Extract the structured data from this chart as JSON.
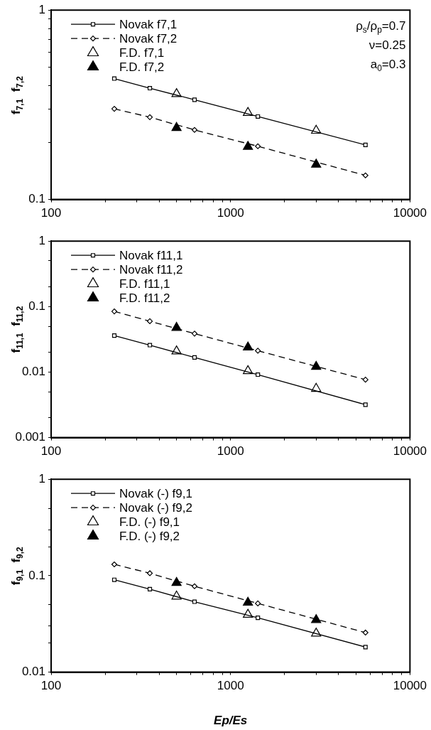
{
  "chart_data": [
    {
      "type": "line",
      "ylabel": "f$_{7,1}$  f$_{7,2}$",
      "log": "xy",
      "grid": false,
      "legend": "top left",
      "annotations": [
        "ρ$_{s}$/ρ$_{p}$=0.7",
        "ν=0.25",
        "a$_{0}$=0.3"
      ],
      "xlim": [
        100,
        10000
      ],
      "xticks": [
        100,
        {
          "value": 200,
          "label": null
        },
        {
          "value": 300,
          "label": null
        },
        {
          "value": 400,
          "label": null
        },
        {
          "value": 500,
          "label": null
        },
        {
          "value": 600,
          "label": null
        },
        {
          "value": 700,
          "label": null
        },
        {
          "value": 800,
          "label": null
        },
        {
          "value": 900,
          "label": null
        },
        1000,
        {
          "value": 2000,
          "label": null
        },
        {
          "value": 3000,
          "label": null
        },
        {
          "value": 4000,
          "label": null
        },
        {
          "value": 5000,
          "label": null
        },
        {
          "value": 6000,
          "label": null
        },
        {
          "value": 7000,
          "label": null
        },
        {
          "value": 8000,
          "label": null
        },
        {
          "value": 9000,
          "label": null
        },
        10000
      ],
      "ylim": [
        0.1,
        1
      ],
      "yticks": [
        0.1,
        {
          "value": 0.2,
          "label": null
        },
        {
          "value": 0.3,
          "label": null
        },
        {
          "value": 0.4,
          "label": null
        },
        {
          "value": 0.5,
          "label": null
        },
        {
          "value": 0.6,
          "label": null
        },
        {
          "value": 0.7,
          "label": null
        },
        {
          "value": 0.8,
          "label": null
        },
        {
          "value": 0.9,
          "label": null
        },
        1
      ],
      "series": [
        {
          "name": "Novak f7,1",
          "type": "line",
          "color": "#000000",
          "marker": "square",
          "line_style": "solid",
          "x": [
            225,
            355,
            630,
            1420,
            5650
          ],
          "values": [
            0.435,
            0.387,
            0.336,
            0.274,
            0.194
          ]
        },
        {
          "name": "Novak f7,2",
          "type": "line",
          "color": "#000000",
          "marker": "diamond",
          "line_style": "dashed",
          "x": [
            225,
            355,
            630,
            1420,
            5650
          ],
          "values": [
            0.301,
            0.272,
            0.233,
            0.191,
            0.134
          ]
        },
        {
          "name": "F.D. f7,1",
          "type": "scatter",
          "color": "#ffffff",
          "marker": "triangle",
          "x": [
            500,
            1250,
            3000
          ],
          "values": [
            0.361,
            0.287,
            0.231
          ]
        },
        {
          "name": "F.D. f7,2",
          "type": "scatter",
          "color": "#000000",
          "marker": "triangle",
          "x": [
            500,
            1250,
            3000
          ],
          "values": [
            0.239,
            0.19,
            0.153
          ]
        }
      ]
    },
    {
      "type": "line",
      "ylabel": "f$_{11,1}$  f$_{11,2}$",
      "log": "xy",
      "grid": false,
      "legend": "top left",
      "xlim": [
        100,
        10000
      ],
      "xticks": [
        100,
        {
          "value": 200,
          "label": null
        },
        {
          "value": 300,
          "label": null
        },
        {
          "value": 400,
          "label": null
        },
        {
          "value": 500,
          "label": null
        },
        {
          "value": 600,
          "label": null
        },
        {
          "value": 700,
          "label": null
        },
        {
          "value": 800,
          "label": null
        },
        {
          "value": 900,
          "label": null
        },
        1000,
        {
          "value": 2000,
          "label": null
        },
        {
          "value": 3000,
          "label": null
        },
        {
          "value": 4000,
          "label": null
        },
        {
          "value": 5000,
          "label": null
        },
        {
          "value": 6000,
          "label": null
        },
        {
          "value": 7000,
          "label": null
        },
        {
          "value": 8000,
          "label": null
        },
        {
          "value": 9000,
          "label": null
        },
        10000
      ],
      "ylim": [
        0.001,
        1
      ],
      "yticks": [
        0.001,
        {
          "value": 0.002,
          "label": null
        },
        {
          "value": 0.005,
          "label": null
        },
        0.01,
        {
          "value": 0.02,
          "label": null
        },
        {
          "value": 0.05,
          "label": null
        },
        0.1,
        {
          "value": 0.2,
          "label": null
        },
        {
          "value": 0.5,
          "label": null
        },
        1
      ],
      "series": [
        {
          "name": "Novak f11,1",
          "type": "line",
          "color": "#000000",
          "marker": "square",
          "line_style": "solid",
          "x": [
            225,
            355,
            630,
            1420,
            5650
          ],
          "values": [
            0.0361,
            0.0258,
            0.0167,
            0.00915,
            0.00318
          ]
        },
        {
          "name": "Novak f11,2",
          "type": "line",
          "color": "#000000",
          "marker": "diamond",
          "line_style": "dashed",
          "x": [
            225,
            355,
            630,
            1420,
            5650
          ],
          "values": [
            0.0845,
            0.0598,
            0.0387,
            0.0212,
            0.00766
          ]
        },
        {
          "name": "F.D. f11,1",
          "type": "scatter",
          "color": "#ffffff",
          "marker": "triangle",
          "x": [
            500,
            1250,
            3000
          ],
          "values": [
            0.0208,
            0.0104,
            0.00558
          ]
        },
        {
          "name": "F.D. f11,2",
          "type": "scatter",
          "color": "#000000",
          "marker": "triangle",
          "x": [
            500,
            1250,
            3000
          ],
          "values": [
            0.0476,
            0.0239,
            0.0121
          ]
        }
      ]
    },
    {
      "type": "line",
      "ylabel": "f$_{9,1}$  f$_{9,2}$",
      "xlabel": "Ep/Es",
      "log": "xy",
      "grid": false,
      "legend": "top left",
      "xlim": [
        100,
        10000
      ],
      "xticks": [
        100,
        {
          "value": 200,
          "label": null
        },
        {
          "value": 300,
          "label": null
        },
        {
          "value": 400,
          "label": null
        },
        {
          "value": 500,
          "label": null
        },
        {
          "value": 600,
          "label": null
        },
        {
          "value": 700,
          "label": null
        },
        {
          "value": 800,
          "label": null
        },
        {
          "value": 900,
          "label": null
        },
        1000,
        {
          "value": 2000,
          "label": null
        },
        {
          "value": 3000,
          "label": null
        },
        {
          "value": 4000,
          "label": null
        },
        {
          "value": 5000,
          "label": null
        },
        {
          "value": 6000,
          "label": null
        },
        {
          "value": 7000,
          "label": null
        },
        {
          "value": 8000,
          "label": null
        },
        {
          "value": 9000,
          "label": null
        },
        10000
      ],
      "ylim": [
        0.01,
        1
      ],
      "yticks": [
        0.01,
        {
          "value": 0.02,
          "label": null
        },
        {
          "value": 0.03,
          "label": null
        },
        {
          "value": 0.05,
          "label": null
        },
        0.1,
        {
          "value": 0.2,
          "label": null
        },
        {
          "value": 0.3,
          "label": null
        },
        {
          "value": 0.5,
          "label": null
        },
        1
      ],
      "series": [
        {
          "name": "Novak (-) f9,1",
          "type": "line",
          "color": "#000000",
          "marker": "square",
          "line_style": "solid",
          "x": [
            225,
            355,
            630,
            1420,
            5650
          ],
          "values": [
            0.0906,
            0.0724,
            0.0537,
            0.0366,
            0.0182
          ]
        },
        {
          "name": "Novak (-) f9,2",
          "type": "line",
          "color": "#000000",
          "marker": "diamond",
          "line_style": "dashed",
          "x": [
            225,
            355,
            630,
            1420,
            5650
          ],
          "values": [
            0.131,
            0.106,
            0.0777,
            0.0516,
            0.0257
          ]
        },
        {
          "name": "F.D. (-) f9,1",
          "type": "scatter",
          "color": "#ffffff",
          "marker": "triangle",
          "x": [
            500,
            1250,
            3000
          ],
          "values": [
            0.061,
            0.0395,
            0.0252
          ]
        },
        {
          "name": "F.D. (-) f9,2",
          "type": "scatter",
          "color": "#000000",
          "marker": "triangle",
          "x": [
            500,
            1250,
            3000
          ],
          "values": [
            0.0845,
            0.0526,
            0.0348
          ]
        }
      ]
    }
  ]
}
